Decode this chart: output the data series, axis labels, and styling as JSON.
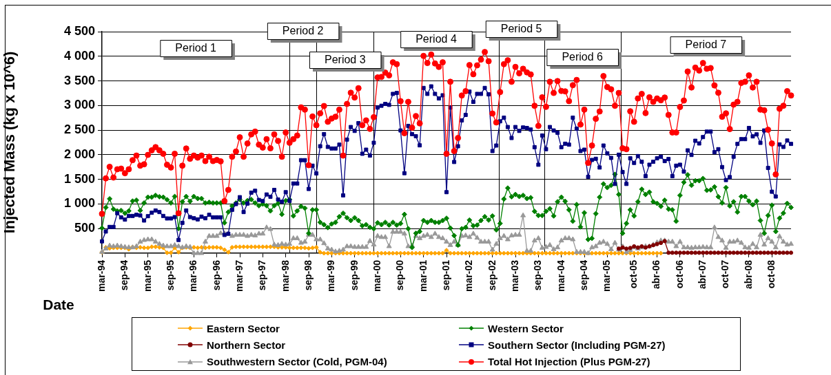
{
  "chart_data": {
    "type": "line",
    "xlabel": "Date",
    "ylabel": "Injected Mass (kg x 10^6)",
    "x": [
      "1994-03",
      "1994-04",
      "1994-05",
      "1994-06",
      "1994-07",
      "1994-08",
      "1994-09",
      "1994-10",
      "1994-11",
      "1994-12",
      "1995-01",
      "1995-02",
      "1995-03",
      "1995-04",
      "1995-05",
      "1995-06",
      "1995-07",
      "1995-08",
      "1995-09",
      "1995-10",
      "1995-11",
      "1995-12",
      "1996-01",
      "1996-02",
      "1996-03",
      "1996-04",
      "1996-05",
      "1996-06",
      "1996-07",
      "1996-08",
      "1996-09",
      "1996-10",
      "1996-11",
      "1996-12",
      "1997-01",
      "1997-02",
      "1997-03",
      "1997-04",
      "1997-05",
      "1997-06",
      "1997-07",
      "1997-08",
      "1997-09",
      "1997-10",
      "1997-11",
      "1997-12",
      "1998-01",
      "1998-02",
      "1998-03",
      "1998-04",
      "1998-05",
      "1998-06",
      "1998-07",
      "1998-08",
      "1998-09",
      "1998-10",
      "1998-11",
      "1998-12",
      "1999-01",
      "1999-02",
      "1999-03",
      "1999-04",
      "1999-05",
      "1999-06",
      "1999-07",
      "1999-08",
      "1999-09",
      "1999-10",
      "1999-11",
      "1999-12",
      "2000-01",
      "2000-02",
      "2000-03",
      "2000-04",
      "2000-05",
      "2000-06",
      "2000-07",
      "2000-08",
      "2000-09",
      "2000-10",
      "2000-11",
      "2000-12",
      "2001-01",
      "2001-02",
      "2001-03",
      "2001-04",
      "2001-05",
      "2001-06",
      "2001-07",
      "2001-08",
      "2001-09",
      "2001-10",
      "2001-11",
      "2001-12",
      "2002-01",
      "2002-02",
      "2002-03",
      "2002-04",
      "2002-05",
      "2002-06",
      "2002-07",
      "2002-08",
      "2002-09",
      "2002-10",
      "2002-11",
      "2002-12",
      "2003-01",
      "2003-02",
      "2003-03",
      "2003-04",
      "2003-05",
      "2003-06",
      "2003-07",
      "2003-08",
      "2003-09",
      "2003-10",
      "2003-11",
      "2003-12",
      "2004-01",
      "2004-02",
      "2004-03",
      "2004-04",
      "2004-05",
      "2004-06",
      "2004-07",
      "2004-08",
      "2004-09",
      "2004-10",
      "2004-11",
      "2004-12",
      "2005-01",
      "2005-02",
      "2005-03",
      "2005-04",
      "2005-05",
      "2005-06",
      "2005-07",
      "2005-08",
      "2005-09",
      "2005-10",
      "2005-11",
      "2005-12",
      "2006-01",
      "2006-02",
      "2006-03",
      "2006-04",
      "2006-05",
      "2006-06",
      "2006-07",
      "2006-08",
      "2006-09",
      "2006-10",
      "2006-11",
      "2006-12",
      "2007-01",
      "2007-02",
      "2007-03",
      "2007-04",
      "2007-05",
      "2007-06",
      "2007-07",
      "2007-08",
      "2007-09",
      "2007-10",
      "2007-11",
      "2007-12",
      "2008-01",
      "2008-02",
      "2008-03",
      "2008-04",
      "2008-05",
      "2008-06",
      "2008-07",
      "2008-08",
      "2008-09",
      "2008-10",
      "2008-11",
      "2008-12",
      "2009-01",
      "2009-02",
      "2009-03"
    ],
    "xlim": [
      "1994-03",
      "2009-03"
    ],
    "xticks": [
      {
        "value": "1994-03",
        "label": "mar-94"
      },
      {
        "value": "1994-09",
        "label": "sep-94"
      },
      {
        "value": "1995-03",
        "label": "mar-95"
      },
      {
        "value": "1995-09",
        "label": "sep-95"
      },
      {
        "value": "1996-03",
        "label": "mar-96"
      },
      {
        "value": "1996-09",
        "label": "sep-96"
      },
      {
        "value": "1997-03",
        "label": "mar-97"
      },
      {
        "value": "1997-09",
        "label": "sep-97"
      },
      {
        "value": "1998-03",
        "label": "mar-98"
      },
      {
        "value": "1998-09",
        "label": "sep-98"
      },
      {
        "value": "1999-03",
        "label": "mar-99"
      },
      {
        "value": "1999-09",
        "label": "sep-99"
      },
      {
        "value": "2000-03",
        "label": "mar-00"
      },
      {
        "value": "2000-09",
        "label": "sep-00"
      },
      {
        "value": "2001-03",
        "label": "mar-01"
      },
      {
        "value": "2001-09",
        "label": "sep-01"
      },
      {
        "value": "2002-03",
        "label": "mar-02"
      },
      {
        "value": "2002-09",
        "label": "sep-02"
      },
      {
        "value": "2003-03",
        "label": "mar-03"
      },
      {
        "value": "2003-09",
        "label": "sep-03"
      },
      {
        "value": "2004-03",
        "label": "mar-04"
      },
      {
        "value": "2004-09",
        "label": "sep-04"
      },
      {
        "value": "2005-03",
        "label": "mar-05"
      },
      {
        "value": "2005-10",
        "label": "oct-05"
      },
      {
        "value": "2006-04",
        "label": "abr-06"
      },
      {
        "value": "2006-10",
        "label": "oct-06"
      },
      {
        "value": "2007-04",
        "label": "abr-07"
      },
      {
        "value": "2007-10",
        "label": "oct-07"
      },
      {
        "value": "2008-04",
        "label": "abr-08"
      },
      {
        "value": "2008-10",
        "label": "oct-08"
      }
    ],
    "ylim": [
      0,
      4500
    ],
    "yticks": [
      500,
      {
        "value": 1000,
        "label": "1 000"
      },
      {
        "value": 1500,
        "label": "1 500"
      },
      {
        "value": 2000,
        "label": "2 000"
      },
      {
        "value": 2500,
        "label": "2 500"
      },
      {
        "value": 3000,
        "label": "3 000"
      },
      {
        "value": 3500,
        "label": "3 500"
      },
      {
        "value": 4000,
        "label": "4 000"
      },
      {
        "value": 4500,
        "label": "4 500"
      }
    ],
    "grid": "y",
    "legend": "bottom",
    "ref_lines": [
      {
        "axis": "x",
        "value": "1998-04"
      },
      {
        "axis": "x",
        "value": "1998-11"
      },
      {
        "axis": "x",
        "value": "2000-02"
      },
      {
        "axis": "x",
        "value": "2002-10-19"
      },
      {
        "axis": "x",
        "value": "2003-10-16"
      },
      {
        "axis": "x",
        "value": "2005-06-16"
      }
    ],
    "annotations": [
      "Period 1",
      "Period 2",
      "Period 3",
      "Period 4",
      "Period 5",
      "Period 6",
      "Period 7"
    ],
    "series": [
      {
        "name": "Eastern Sector",
        "color": "#ffa500",
        "marker": "diamond",
        "values": [
          20,
          120,
          100,
          110,
          110,
          110,
          110,
          80,
          125,
          110,
          120,
          110,
          110,
          130,
          130,
          120,
          110,
          10,
          10,
          110,
          20,
          110,
          120,
          110,
          120,
          110,
          120,
          110,
          120,
          120,
          120,
          110,
          70,
          20,
          120,
          130,
          130,
          130,
          130,
          130,
          130,
          130,
          130,
          130,
          130,
          130,
          120,
          120,
          120,
          110,
          110,
          110,
          110,
          110,
          100,
          110,
          120,
          20,
          0,
          0,
          0,
          0,
          0,
          0,
          0,
          0,
          0,
          0,
          0,
          0,
          0,
          0,
          0,
          0,
          0,
          0,
          0,
          0,
          0,
          0,
          0,
          0,
          0,
          0,
          0,
          0,
          0,
          0,
          0,
          0,
          60,
          0,
          0,
          0,
          0,
          0,
          0,
          0,
          0,
          0,
          0,
          0,
          0,
          0,
          0,
          0,
          0,
          0,
          0,
          0,
          0,
          0,
          0,
          0,
          0,
          0,
          0,
          0,
          0,
          0,
          0,
          0,
          0,
          0,
          0,
          0,
          0,
          0,
          0,
          0,
          0,
          0,
          0,
          0,
          0,
          0,
          0,
          0,
          0,
          0,
          0,
          0,
          0,
          0,
          0,
          0,
          0,
          null,
          null,
          null,
          null,
          null,
          null,
          null,
          null,
          null,
          null,
          null,
          null,
          null,
          null,
          null,
          null,
          null,
          null,
          null,
          null,
          null,
          null,
          null,
          null,
          null,
          null,
          null,
          null,
          null,
          null,
          null,
          null,
          null,
          null
        ]
      },
      {
        "name": "Western Sector",
        "color": "#008000",
        "marker": "diamond",
        "values": [
          511,
          929,
          1105,
          896,
          859,
          868,
          812,
          859,
          1059,
          1077,
          868,
          1021,
          1138,
          1138,
          1175,
          1147,
          1138,
          1086,
          1021,
          1152,
          501,
          1045,
          1152,
          1054,
          1152,
          1110,
          1110,
          1021,
          1035,
          1021,
          1021,
          1021,
          617,
          836,
          961,
          1021,
          1091,
          1021,
          1068,
          1091,
          1021,
          966,
          998,
          966,
          859,
          966,
          1012,
          789,
          1068,
          1091,
          757,
          859,
          952,
          915,
          404,
          882,
          882,
          627,
          580,
          520,
          594,
          627,
          743,
          812,
          720,
          664,
          720,
          664,
          557,
          580,
          525,
          497,
          617,
          580,
          627,
          571,
          627,
          571,
          604,
          789,
          497,
          116,
          404,
          441,
          664,
          627,
          664,
          627,
          627,
          664,
          710,
          511,
          358,
          163,
          497,
          525,
          673,
          557,
          571,
          664,
          743,
          673,
          757,
          474,
          604,
          1100,
          1323,
          1147,
          1193,
          1152,
          1175,
          1110,
          1128,
          850,
          766,
          766,
          850,
          905,
          757,
          1045,
          1138,
          1054,
          882,
          650,
          989,
          534,
          822,
          279,
          302,
          803,
          1138,
          1407,
          1333,
          1379,
          1602,
          1193,
          404,
          604,
          882,
          757,
          1045,
          1300,
          1193,
          1240,
          1045,
          1012,
          952,
          1077,
          896,
          882,
          650,
          1175,
          1440,
          1593,
          1379,
          1472,
          1472,
          1518,
          1277,
          1286,
          1347,
          1147,
          1021,
          1333,
          961,
          1045,
          836,
          1152,
          1152,
          1059,
          984,
          1059,
          664,
          404,
          766,
          975,
          441,
          711,
          813,
          1012,
          929
        ]
      },
      {
        "name": "Northern Sector",
        "color": "#800000",
        "marker": "circle",
        "values": [
          null,
          null,
          null,
          null,
          null,
          null,
          null,
          null,
          null,
          null,
          null,
          null,
          null,
          null,
          null,
          null,
          null,
          null,
          null,
          null,
          null,
          null,
          null,
          null,
          null,
          null,
          null,
          null,
          null,
          null,
          null,
          null,
          null,
          null,
          null,
          null,
          null,
          null,
          null,
          null,
          null,
          null,
          null,
          null,
          null,
          null,
          null,
          null,
          null,
          null,
          null,
          null,
          null,
          null,
          null,
          null,
          null,
          null,
          null,
          null,
          null,
          null,
          null,
          null,
          null,
          null,
          null,
          null,
          null,
          null,
          null,
          null,
          null,
          null,
          null,
          null,
          null,
          null,
          null,
          null,
          null,
          null,
          null,
          null,
          null,
          null,
          null,
          null,
          null,
          null,
          null,
          null,
          null,
          null,
          null,
          null,
          null,
          null,
          null,
          null,
          null,
          null,
          null,
          null,
          null,
          null,
          null,
          null,
          null,
          null,
          null,
          null,
          null,
          null,
          null,
          null,
          null,
          null,
          null,
          null,
          null,
          null,
          null,
          null,
          null,
          null,
          null,
          null,
          null,
          null,
          null,
          null,
          null,
          null,
          null,
          93,
          116,
          93,
          107,
          139,
          116,
          139,
          116,
          139,
          163,
          186,
          209,
          246,
          10,
          10,
          10,
          10,
          10,
          10,
          10,
          10,
          10,
          10,
          10,
          10,
          10,
          10,
          10,
          10,
          10,
          10,
          10,
          10,
          10,
          10,
          10,
          10,
          10,
          10,
          10,
          10,
          10,
          10,
          10,
          10,
          10
        ]
      },
      {
        "name": "Southern Sector (Including PGM-27)",
        "color": "#000080",
        "marker": "square",
        "values": [
          241,
          441,
          534,
          534,
          812,
          729,
          683,
          757,
          757,
          780,
          766,
          664,
          752,
          822,
          868,
          836,
          757,
          706,
          706,
          734,
          269,
          617,
          868,
          734,
          710,
          687,
          743,
          710,
          780,
          729,
          729,
          729,
          371,
          395,
          882,
          998,
          1138,
          836,
          1008,
          1230,
          1268,
          1082,
          1059,
          1193,
          1147,
          1286,
          1091,
          1045,
          1240,
          1063,
          1416,
          1416,
          1890,
          1890,
          1305,
          1778,
          1620,
          2173,
          2419,
          2159,
          2127,
          2127,
          2205,
          1175,
          2308,
          2563,
          2484,
          2642,
          2020,
          2103,
          1983,
          2243,
          2958,
          2995,
          3032,
          3013,
          3236,
          3255,
          2493,
          1625,
          2586,
          2419,
          2377,
          2191,
          3357,
          3236,
          3389,
          3236,
          3143,
          3208,
          1240,
          2958,
          1853,
          2173,
          2698,
          2809,
          3282,
          3074,
          3236,
          3236,
          3357,
          3227,
          2075,
          2187,
          2679,
          2753,
          2563,
          2340,
          2563,
          2484,
          2554,
          2544,
          2512,
          2154,
          1797,
          2391,
          2113,
          2563,
          2493,
          2447,
          2154,
          2224,
          2205,
          2753,
          2530,
          2075,
          2103,
          1551,
          1894,
          1918,
          1741,
          2187,
          2029,
          1936,
          1407,
          2001,
          1648,
          1407,
          1927,
          1834,
          1973,
          1857,
          1565,
          1797,
          1857,
          1927,
          1960,
          1871,
          1913,
          1565,
          1778,
          1797,
          1657,
          2089,
          1996,
          2284,
          2229,
          2359,
          2470,
          2470,
          2052,
          2113,
          1750,
          1486,
          1546,
          1960,
          2220,
          2317,
          2317,
          2544,
          2373,
          2414,
          2242,
          2493,
          1732,
          1249,
          1152,
          2210,
          2159,
          2289,
          2220
        ]
      },
      {
        "name": "Southwestern Sector (Cold, PGM-04)",
        "color": "#999999",
        "marker": "triangle",
        "values": [
          23,
          93,
          153,
          139,
          153,
          139,
          125,
          116,
          116,
          139,
          232,
          265,
          279,
          279,
          232,
          186,
          153,
          139,
          139,
          163,
          139,
          116,
          139,
          125,
          0,
          0,
          0,
          232,
          348,
          348,
          348,
          404,
          404,
          395,
          348,
          371,
          371,
          371,
          348,
          371,
          358,
          395,
          395,
          520,
          488,
          172,
          163,
          186,
          172,
          186,
          302,
          302,
          209,
          232,
          371,
          371,
          279,
          279,
          200,
          93,
          70,
          32,
          46,
          70,
          139,
          139,
          125,
          125,
          125,
          125,
          246,
          172,
          348,
          325,
          325,
          139,
          432,
          432,
          432,
          395,
          139,
          153,
          348,
          302,
          348,
          371,
          325,
          395,
          325,
          302,
          232,
          163,
          232,
          163,
          348,
          358,
          325,
          395,
          311,
          232,
          232,
          232,
          70,
          186,
          302,
          348,
          279,
          358,
          371,
          371,
          766,
          46,
          46,
          255,
          302,
          107,
          125,
          163,
          79,
          116,
          255,
          302,
          302,
          279,
          23,
          23,
          23,
          0,
          116,
          139,
          209,
          232,
          186,
          79,
          209,
          70,
          139,
          23,
          60,
          116,
          93,
          116,
          139,
          139,
          172,
          218,
          255,
          255,
          232,
          232,
          139,
          232,
          116,
          116,
          107,
          116,
          116,
          125,
          116,
          116,
          520,
          325,
          255,
          107,
          232,
          232,
          255,
          209,
          116,
          107,
          186,
          116,
          371,
          172,
          302,
          232,
          116,
          339,
          232,
          172,
          186
        ]
      },
      {
        "name": "Total Hot Injection (Plus PGM-27)",
        "color": "#ff0000",
        "marker": "circle",
        "values": [
          800,
          1520,
          1755,
          1537,
          1705,
          1718,
          1625,
          1705,
          1890,
          1983,
          1778,
          1806,
          1997,
          2090,
          2154,
          2090,
          2020,
          1797,
          1741,
          2020,
          812,
          1778,
          2127,
          1918,
          1983,
          1941,
          1983,
          1871,
          1960,
          1871,
          1894,
          1866,
          1058,
          1286,
          1960,
          2066,
          2354,
          1960,
          2229,
          2414,
          2470,
          2205,
          2145,
          2317,
          2131,
          2414,
          2280,
          1960,
          2452,
          2243,
          2317,
          2391,
          2962,
          2916,
          1788,
          2777,
          2600,
          2841,
          2990,
          2670,
          2735,
          2772,
          2916,
          1983,
          3032,
          3259,
          3162,
          3352,
          2600,
          2698,
          2526,
          2763,
          3570,
          3580,
          3668,
          3612,
          3877,
          3840,
          3088,
          2437,
          3074,
          2549,
          2786,
          2637,
          4007,
          3863,
          4035,
          3854,
          3784,
          3877,
          2020,
          3482,
          2075,
          2340,
          3204,
          3292,
          3821,
          3635,
          3816,
          3933,
          4086,
          3900,
          2837,
          2656,
          3273,
          3840,
          3919,
          3482,
          3784,
          3654,
          3747,
          3673,
          3631,
          2995,
          2586,
          3167,
          2972,
          3482,
          3255,
          3496,
          3296,
          3287,
          3088,
          3413,
          3519,
          2614,
          2916,
          1834,
          2187,
          2730,
          2879,
          3598,
          3375,
          3329,
          2995,
          3255,
          2131,
          2113,
          2883,
          2670,
          3143,
          3236,
          2846,
          3167,
          3074,
          3143,
          3106,
          3162,
          2809,
          2452,
          2452,
          2970,
          3101,
          3691,
          3366,
          3770,
          3710,
          3863,
          3747,
          3761,
          3408,
          3259,
          2772,
          2841,
          2521,
          3018,
          3074,
          3459,
          3482,
          3612,
          3366,
          3482,
          2916,
          2902,
          2507,
          2229,
          1601,
          2934,
          2995,
          3292,
          3204
        ]
      }
    ]
  }
}
